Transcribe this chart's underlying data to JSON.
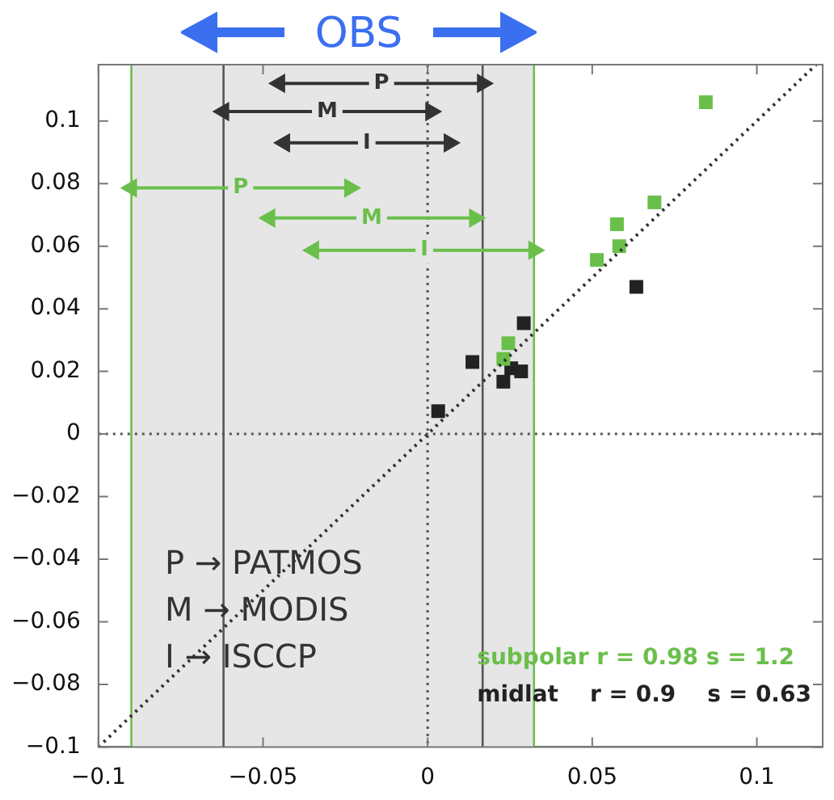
{
  "chart_data": {
    "type": "scatter",
    "marker": "square",
    "grid": false,
    "legend": "bottom right",
    "xlim": [
      -0.1,
      0.12
    ],
    "ylim": [
      -0.1,
      0.118
    ],
    "xticks": [
      {
        "value": -0.1,
        "label": "−0.1"
      },
      {
        "value": -0.05,
        "label": "−0.05"
      },
      0,
      0.05,
      0.1
    ],
    "yticks": [
      {
        "value": -0.1,
        "label": "−0.1"
      },
      {
        "value": -0.08,
        "label": "−0.08"
      },
      {
        "value": -0.06,
        "label": "−0.06"
      },
      {
        "value": -0.04,
        "label": "−0.04"
      },
      {
        "value": -0.02,
        "label": "−0.02"
      },
      0,
      0.02,
      0.04,
      0.06,
      0.08,
      0.1
    ],
    "bands": [
      {
        "axis": "x",
        "from": -0.09,
        "to": 0.0323,
        "color": "#e6e6e6"
      }
    ],
    "ref_lines": [
      {
        "axis": "x",
        "value": 0,
        "color": "#555555",
        "line_style": "dotted"
      },
      {
        "axis": "y",
        "value": 0,
        "color": "#555555",
        "line_style": "dotted"
      },
      {
        "axis": "x",
        "value": -0.062,
        "color": "#555555",
        "line_style": "solid"
      },
      {
        "axis": "x",
        "value": 0.0167,
        "color": "#555555",
        "line_style": "solid"
      },
      {
        "axis": "x",
        "value": -0.09,
        "color": "#6abf4b",
        "line_style": "solid"
      },
      {
        "axis": "x",
        "value": 0.0323,
        "color": "#6abf4b",
        "line_style": "solid"
      }
    ],
    "series": [
      {
        "type": "line",
        "color": "#333333",
        "line_style": "dotted",
        "marker": "none",
        "x": [
          -0.1,
          0.118
        ],
        "values": [
          -0.1,
          0.118
        ]
      },
      {
        "name": "subpolar r = 0.98 s = 1.2",
        "color": "#6abf4b",
        "x": [
          0.0845,
          0.0689,
          0.0575,
          0.0582,
          0.0514,
          0.0245,
          0.023
        ],
        "values": [
          0.106,
          0.074,
          0.067,
          0.06,
          0.0556,
          0.029,
          0.024
        ]
      },
      {
        "name": "midlat    r = 0.9    s = 0.63",
        "color": "#222222",
        "x": [
          0.0634,
          0.0292,
          0.0136,
          0.0032,
          0.0254,
          0.0284,
          0.023
        ],
        "values": [
          0.047,
          0.0354,
          0.023,
          0.0073,
          0.021,
          0.02,
          0.0167
        ]
      },
      {
        "type": "line",
        "color": "#333333",
        "line_style": "solid",
        "marker": "triangle",
        "x": [
          -0.045,
          0.0167
        ],
        "values": [
          0.112,
          0.112
        ]
      },
      {
        "type": "line",
        "color": "#333333",
        "line_style": "solid",
        "marker": "triangle",
        "x": [
          -0.062,
          0.001
        ],
        "values": [
          0.103,
          0.103
        ]
      },
      {
        "type": "line",
        "color": "#333333",
        "line_style": "solid",
        "marker": "triangle",
        "x": [
          -0.0435,
          0.0066
        ],
        "values": [
          0.093,
          0.093
        ]
      },
      {
        "type": "line",
        "color": "#6abf4b",
        "line_style": "solid",
        "marker": "triangle",
        "x": [
          -0.09,
          -0.0236
        ],
        "values": [
          0.0786,
          0.0786
        ]
      },
      {
        "type": "line",
        "color": "#6abf4b",
        "line_style": "solid",
        "marker": "triangle",
        "x": [
          -0.048,
          0.0143
        ],
        "values": [
          0.069,
          0.069
        ]
      },
      {
        "type": "line",
        "color": "#6abf4b",
        "line_style": "solid",
        "marker": "triangle",
        "x": [
          -0.0347,
          0.0323
        ],
        "values": [
          0.0587,
          0.0587
        ]
      }
    ],
    "annotations": [
      "OBS",
      "P → PATMOS",
      "M → MODIS",
      "I  → ISCCP",
      {
        "text": "P",
        "x": -0.014,
        "y": 0.112
      },
      {
        "text": "M",
        "x": -0.0305,
        "y": 0.103
      },
      {
        "text": "I",
        "x": -0.0185,
        "y": 0.093
      },
      {
        "text": "P",
        "x": -0.0568,
        "y": 0.0786
      },
      {
        "text": "M",
        "x": -0.017,
        "y": 0.069
      },
      {
        "text": "I",
        "x": -0.001,
        "y": 0.0587
      }
    ]
  }
}
